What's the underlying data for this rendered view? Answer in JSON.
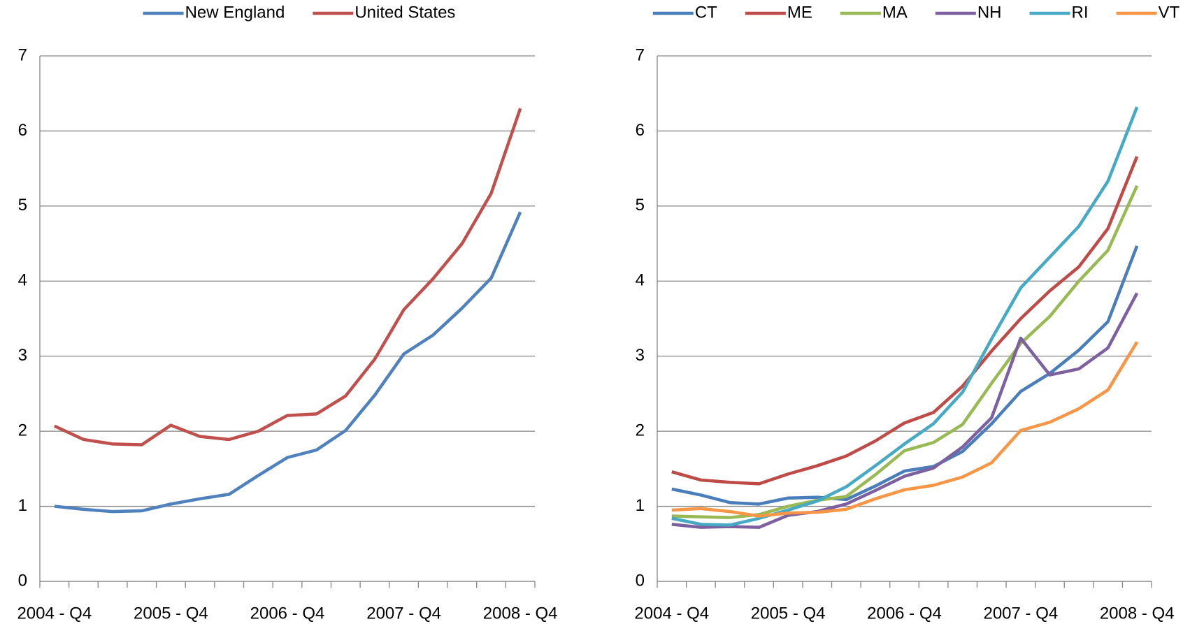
{
  "chart_data": [
    {
      "type": "line",
      "categories": [
        "2004 - Q4",
        null,
        null,
        null,
        "2005 - Q4",
        null,
        null,
        null,
        "2006 - Q4",
        null,
        null,
        null,
        "2007 - Q4",
        null,
        null,
        null,
        "2008 - Q4"
      ],
      "series": [
        {
          "name": "New England",
          "color": "#4f81bd",
          "values": [
            1.0,
            0.96,
            0.93,
            0.94,
            1.03,
            1.1,
            1.16,
            1.41,
            1.65,
            1.75,
            2.01,
            2.48,
            3.03,
            3.28,
            3.64,
            4.04,
            4.92
          ]
        },
        {
          "name": "United States",
          "color": "#c0504d",
          "values": [
            2.07,
            1.89,
            1.83,
            1.82,
            2.08,
            1.93,
            1.89,
            2.0,
            2.21,
            2.23,
            2.47,
            2.96,
            3.62,
            4.03,
            4.5,
            5.17,
            6.3
          ]
        }
      ],
      "ylim": [
        0,
        7
      ],
      "yticks": [
        0,
        1,
        2,
        3,
        4,
        5,
        6,
        7
      ],
      "grid": true,
      "legend": "top"
    },
    {
      "type": "line",
      "categories": [
        "2004 - Q4",
        null,
        null,
        null,
        "2005 - Q4",
        null,
        null,
        null,
        "2006 - Q4",
        null,
        null,
        null,
        "2007 - Q4",
        null,
        null,
        null,
        "2008 - Q4"
      ],
      "series": [
        {
          "name": "CT",
          "color": "#4a7ebb",
          "values": [
            1.23,
            1.15,
            1.05,
            1.03,
            1.11,
            1.12,
            1.09,
            1.27,
            1.47,
            1.53,
            1.73,
            2.1,
            2.53,
            2.77,
            3.08,
            3.46,
            4.47
          ]
        },
        {
          "name": "ME",
          "color": "#be4b48",
          "values": [
            1.46,
            1.35,
            1.32,
            1.3,
            1.43,
            1.54,
            1.67,
            1.87,
            2.11,
            2.25,
            2.6,
            3.07,
            3.5,
            3.87,
            4.19,
            4.7,
            5.66
          ]
        },
        {
          "name": "MA",
          "color": "#98b954",
          "values": [
            0.87,
            0.86,
            0.85,
            0.89,
            1.0,
            1.08,
            1.13,
            1.42,
            1.74,
            1.85,
            2.09,
            2.64,
            3.17,
            3.53,
            4.0,
            4.41,
            5.27
          ]
        },
        {
          "name": "NH",
          "color": "#7d60a0",
          "values": [
            0.76,
            0.72,
            0.73,
            0.72,
            0.88,
            0.93,
            1.03,
            1.21,
            1.4,
            1.51,
            1.79,
            2.18,
            3.24,
            2.75,
            2.83,
            3.11,
            3.84
          ]
        },
        {
          "name": "RI",
          "color": "#46aac5",
          "values": [
            0.84,
            0.76,
            0.75,
            0.84,
            0.95,
            1.07,
            1.26,
            1.54,
            1.83,
            2.1,
            2.52,
            3.23,
            3.91,
            4.32,
            4.73,
            5.33,
            6.32
          ]
        },
        {
          "name": "VT",
          "color": "#f79646",
          "values": [
            0.95,
            0.97,
            0.93,
            0.87,
            0.91,
            0.92,
            0.96,
            1.1,
            1.22,
            1.28,
            1.39,
            1.58,
            2.01,
            2.12,
            2.3,
            2.55,
            3.19
          ]
        }
      ],
      "ylim": [
        0,
        7
      ],
      "yticks": [
        0,
        1,
        2,
        3,
        4,
        5,
        6,
        7
      ],
      "grid": true,
      "legend": "top"
    }
  ]
}
